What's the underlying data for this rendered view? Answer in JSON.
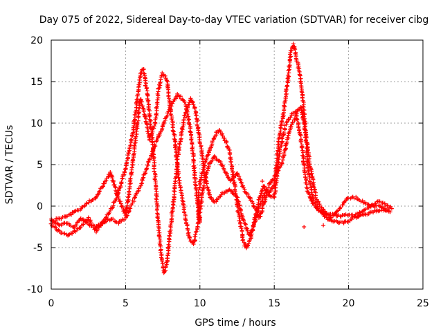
{
  "chart_data": {
    "type": "scatter",
    "title": "Day 075 of 2022, Sidereal Day-to-day VTEC variation (SDTVAR) for receiver cibg",
    "xlabel": "GPS time / hours",
    "ylabel": "SDTVAR / TECUs",
    "xlim": [
      0,
      25
    ],
    "ylim": [
      -10,
      20
    ],
    "xticks": [
      0,
      5,
      10,
      15,
      20,
      25
    ],
    "yticks": [
      -10,
      -5,
      0,
      5,
      10,
      15,
      20
    ],
    "grid": true,
    "marker": "+",
    "color": "#ff0000",
    "series": [
      {
        "name": "SDTVAR",
        "traces": [
          [
            [
              0,
              -1.6
            ],
            [
              0.5,
              -2.3
            ],
            [
              1,
              -2.0
            ],
            [
              1.5,
              -2.6
            ],
            [
              2,
              -1.5
            ],
            [
              2.5,
              -2.2
            ],
            [
              3,
              -2.5
            ],
            [
              3.5,
              -1.8
            ],
            [
              4,
              -0.5
            ],
            [
              4.5,
              1.5
            ],
            [
              5,
              4.5
            ],
            [
              5.5,
              9.0
            ],
            [
              5.8,
              13.0
            ],
            [
              6,
              16.0
            ],
            [
              6.2,
              16.5
            ],
            [
              6.5,
              13.0
            ],
            [
              6.8,
              8.0
            ],
            [
              7,
              3.0
            ],
            [
              7.2,
              -2.0
            ],
            [
              7.4,
              -6.0
            ],
            [
              7.6,
              -8.0
            ],
            [
              7.8,
              -6.5
            ],
            [
              8,
              -3.0
            ],
            [
              8.3,
              2.0
            ],
            [
              8.6,
              7.0
            ],
            [
              9,
              11.0
            ],
            [
              9.4,
              13.0
            ],
            [
              9.7,
              11.5
            ],
            [
              10,
              8.0
            ],
            [
              10.3,
              4.0
            ],
            [
              10.7,
              1.0
            ],
            [
              11,
              0.5
            ],
            [
              11.5,
              1.5
            ],
            [
              12,
              2.0
            ],
            [
              12.5,
              1.0
            ],
            [
              13,
              -2.0
            ],
            [
              13.3,
              -3.5
            ],
            [
              13.6,
              -2.5
            ],
            [
              14,
              0.0
            ],
            [
              14.5,
              2.0
            ],
            [
              15,
              3.5
            ],
            [
              15.5,
              5.0
            ],
            [
              16,
              9.0
            ],
            [
              16.5,
              11.0
            ],
            [
              16.8,
              8.0
            ],
            [
              17,
              5.0
            ],
            [
              17.2,
              2.0
            ],
            [
              17.5,
              0.5
            ],
            [
              18,
              -0.5
            ],
            [
              18.5,
              -1.0
            ],
            [
              19,
              -1.0
            ],
            [
              19.5,
              -1.2
            ],
            [
              20,
              -1.0
            ],
            [
              20.5,
              -1.3
            ],
            [
              21,
              -1.0
            ],
            [
              21.5,
              -0.8
            ],
            [
              22,
              -0.5
            ],
            [
              22.5,
              -0.6
            ],
            [
              22.8,
              -0.7
            ]
          ],
          [
            [
              0,
              -2.2
            ],
            [
              0.5,
              -3.0
            ],
            [
              1,
              -3.5
            ],
            [
              1.5,
              -3.2
            ],
            [
              2,
              -2.5
            ],
            [
              2.5,
              -1.5
            ],
            [
              3,
              -3.0
            ],
            [
              3.5,
              -2.0
            ],
            [
              4,
              -1.5
            ],
            [
              4.5,
              -2.0
            ],
            [
              5,
              -1.5
            ],
            [
              5.5,
              0.5
            ],
            [
              6,
              2.5
            ],
            [
              6.5,
              5.0
            ],
            [
              7,
              7.5
            ],
            [
              7.5,
              9.5
            ],
            [
              8,
              12.0
            ],
            [
              8.5,
              13.5
            ],
            [
              9,
              12.5
            ],
            [
              9.3,
              10.0
            ],
            [
              9.5,
              7.0
            ],
            [
              9.7,
              3.0
            ],
            [
              9.9,
              -1.0
            ],
            [
              10,
              -2.0
            ],
            [
              9.9,
              1.0
            ],
            [
              10,
              3.0
            ],
            [
              10.5,
              6.0
            ],
            [
              11,
              8.5
            ],
            [
              11.3,
              9.2
            ],
            [
              11.7,
              8.0
            ],
            [
              12,
              6.5
            ],
            [
              12.3,
              3.0
            ],
            [
              12.6,
              -1.0
            ],
            [
              12.9,
              -4.0
            ],
            [
              13.1,
              -5.0
            ],
            [
              13.4,
              -4.0
            ],
            [
              13.7,
              -1.5
            ],
            [
              14,
              1.0
            ],
            [
              14.3,
              2.5
            ],
            [
              14.6,
              1.5
            ],
            [
              15,
              2.5
            ],
            [
              15.3,
              8.0
            ],
            [
              15.6,
              11.0
            ],
            [
              15.9,
              15.0
            ],
            [
              16.1,
              18.5
            ],
            [
              16.3,
              19.5
            ],
            [
              16.6,
              17.0
            ],
            [
              16.9,
              13.5
            ],
            [
              17.1,
              9.0
            ],
            [
              17.3,
              4.0
            ],
            [
              17.6,
              1.0
            ],
            [
              18,
              -0.5
            ],
            [
              18.5,
              -1.5
            ],
            [
              19,
              -1.8
            ],
            [
              19.5,
              -2.0
            ],
            [
              20,
              -1.8
            ],
            [
              20.5,
              -1.0
            ],
            [
              21,
              -0.5
            ],
            [
              21.5,
              0.0
            ],
            [
              22,
              0.5
            ],
            [
              22.5,
              0.2
            ],
            [
              22.9,
              -0.3
            ]
          ],
          [
            [
              0,
              -1.8
            ],
            [
              0.5,
              -1.5
            ],
            [
              1,
              -1.2
            ],
            [
              1.5,
              -0.8
            ],
            [
              2,
              -0.3
            ],
            [
              2.5,
              0.5
            ],
            [
              3,
              1.0
            ],
            [
              3.5,
              2.5
            ],
            [
              4,
              4.0
            ],
            [
              4.5,
              1.0
            ],
            [
              5,
              -1.0
            ],
            [
              5.2,
              1.0
            ],
            [
              5.4,
              4.0
            ],
            [
              5.6,
              7.0
            ],
            [
              5.8,
              10.0
            ],
            [
              6,
              13.0
            ],
            [
              6.3,
              11.0
            ],
            [
              6.6,
              8.0
            ],
            [
              7,
              10.0
            ],
            [
              7.2,
              14.0
            ],
            [
              7.5,
              16.0
            ],
            [
              7.8,
              15.0
            ],
            [
              8,
              12.0
            ],
            [
              8.3,
              8.0
            ],
            [
              8.6,
              3.0
            ],
            [
              9,
              -1.0
            ],
            [
              9.3,
              -4.0
            ],
            [
              9.6,
              -4.5
            ],
            [
              9.9,
              -2.0
            ],
            [
              10.2,
              2.0
            ],
            [
              10.6,
              5.0
            ],
            [
              11,
              6.0
            ],
            [
              11.5,
              5.0
            ],
            [
              12,
              3.0
            ],
            [
              12.5,
              4.0
            ],
            [
              13,
              2.0
            ],
            [
              13.5,
              0.5
            ],
            [
              14,
              -1.5
            ],
            [
              14.5,
              1.5
            ],
            [
              15,
              1.0
            ],
            [
              15.4,
              7.0
            ],
            [
              15.8,
              10.0
            ],
            [
              16.2,
              11.0
            ],
            [
              16.6,
              11.5
            ],
            [
              16.8,
              12.0
            ],
            [
              17,
              10.0
            ],
            [
              17.4,
              5.0
            ],
            [
              17.8,
              1.0
            ],
            [
              18.3,
              -0.5
            ],
            [
              18.8,
              -1.5
            ],
            [
              19.3,
              -0.5
            ],
            [
              20,
              1.0
            ],
            [
              20.5,
              1.0
            ],
            [
              21,
              0.5
            ],
            [
              21.5,
              0.0
            ],
            [
              22,
              0.0
            ],
            [
              22.5,
              -0.4
            ],
            [
              22.7,
              -0.5
            ]
          ]
        ],
        "isolated_points": [
          [
            17.0,
            -2.5
          ],
          [
            14.2,
            3.0
          ],
          [
            18.3,
            -2.3
          ],
          [
            13.0,
            -4.8
          ]
        ]
      }
    ]
  }
}
